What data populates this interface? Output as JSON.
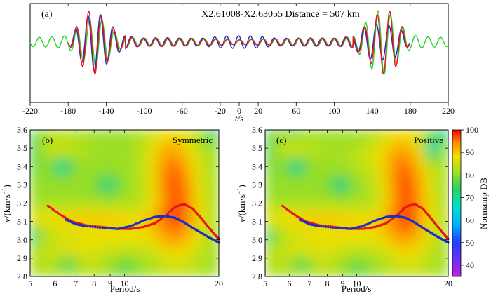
{
  "figure": {
    "colorbar": {
      "label": "Normamp DB",
      "ticks": [
        40,
        50,
        60,
        70,
        80,
        90,
        100
      ],
      "range": [
        35,
        100
      ],
      "stops": [
        {
          "v": 35,
          "color": "#c020e0"
        },
        {
          "v": 42,
          "color": "#7030f0"
        },
        {
          "v": 50,
          "color": "#2040ff"
        },
        {
          "v": 58,
          "color": "#00b0ff"
        },
        {
          "v": 66,
          "color": "#00e0c8"
        },
        {
          "v": 74,
          "color": "#30d060"
        },
        {
          "v": 82,
          "color": "#a8e020"
        },
        {
          "v": 88,
          "color": "#f0e000"
        },
        {
          "v": 94,
          "color": "#ff9000"
        },
        {
          "v": 100,
          "color": "#ff0000"
        }
      ]
    }
  },
  "chart_data": [
    {
      "panel": "(a)",
      "type": "line",
      "title": "X2.61008-X2.63055 Distance = 507 km",
      "xlabel": "t/s",
      "xlim": [
        -220,
        220
      ],
      "xticks": [
        -220,
        -180,
        -140,
        -100,
        -60,
        -20,
        0,
        20,
        60,
        100,
        140,
        180,
        220
      ],
      "yaxis": "amplitude (unlabeled)",
      "series": [
        {
          "name": "trace-red",
          "color": "#e8131b",
          "x": [
            -180,
            -170,
            -160,
            -150,
            -140,
            -130,
            -120,
            -100,
            -80,
            -60,
            -40,
            -20,
            0,
            20,
            40,
            60,
            80,
            100,
            120,
            130,
            140,
            150,
            160,
            170,
            180
          ],
          "envelope": [
            0.04,
            0.55,
            0.95,
            1.0,
            0.65,
            0.35,
            0.18,
            0.12,
            0.14,
            0.12,
            0.1,
            0.09,
            0.07,
            0.09,
            0.1,
            0.12,
            0.13,
            0.12,
            0.18,
            0.4,
            0.7,
            1.0,
            0.95,
            0.55,
            0.04
          ]
        },
        {
          "name": "trace-blue",
          "color": "#1b2fc8",
          "x": [
            -180,
            -170,
            -160,
            -150,
            -140,
            -130,
            -120,
            -100,
            -80,
            -60,
            -40,
            -20,
            0,
            20,
            40,
            60,
            80,
            100,
            120,
            130,
            140,
            150,
            160,
            170,
            180
          ],
          "envelope": [
            0.04,
            0.5,
            0.8,
            0.95,
            0.7,
            0.38,
            0.2,
            0.12,
            0.14,
            0.12,
            0.12,
            0.18,
            0.2,
            0.18,
            0.12,
            0.12,
            0.13,
            0.12,
            0.18,
            0.45,
            0.55,
            0.55,
            0.5,
            0.4,
            0.04
          ]
        },
        {
          "name": "trace-green",
          "color": "#2bd22b",
          "x": [
            -220,
            -200,
            -180,
            -170,
            -160,
            -150,
            -140,
            -130,
            -120,
            -100,
            -60,
            -20,
            0,
            20,
            60,
            100,
            120,
            130,
            140,
            150,
            160,
            170,
            180,
            200,
            220
          ],
          "envelope": [
            0.14,
            0.16,
            0.2,
            0.45,
            0.65,
            0.8,
            0.6,
            0.3,
            0.15,
            0.12,
            0.12,
            0.1,
            0.07,
            0.1,
            0.12,
            0.12,
            0.16,
            0.5,
            0.85,
            1.05,
            0.85,
            0.55,
            0.22,
            0.16,
            0.14
          ]
        }
      ]
    },
    {
      "panel": "(b)",
      "type": "heatmap",
      "label": "Symmetric",
      "xlabel": "Period/s",
      "ylabel": "v/(km·s⁻¹)",
      "xscale": "log",
      "xlim": [
        5,
        20
      ],
      "ylim": [
        2.8,
        3.6
      ],
      "xticks": [
        5,
        6,
        7,
        8,
        9,
        10,
        20
      ],
      "xticklabels": [
        "5",
        "6",
        "7",
        "8",
        "9",
        "10",
        "20"
      ],
      "yticks": [
        2.8,
        2.9,
        3.0,
        3.1,
        3.2,
        3.3,
        3.4,
        3.5,
        3.6
      ],
      "yticklabels": [
        "2.8",
        "2.9",
        "3.0",
        "3.1",
        "3.2",
        "3.3",
        "3.4",
        "3.5",
        "3.6"
      ],
      "series": [
        {
          "name": "dispersion-red",
          "color": "#e8131b",
          "x": [
            5.7,
            6.2,
            6.8,
            7.5,
            8.5,
            9.5,
            10.5,
            11.5,
            12.5,
            13.5,
            14.5,
            15.5,
            16.5,
            17.5,
            18.5,
            19.5,
            20
          ],
          "y": [
            3.185,
            3.14,
            3.1,
            3.08,
            3.07,
            3.06,
            3.06,
            3.07,
            3.09,
            3.13,
            3.18,
            3.195,
            3.17,
            3.12,
            3.07,
            3.025,
            3.005
          ]
        },
        {
          "name": "dispersion-blue",
          "color": "#1b2fc8",
          "x": [
            6.5,
            7.0,
            7.5,
            8.5,
            9.5,
            10.5,
            11.5,
            12.5,
            13.5,
            14.5,
            15.5,
            16.5,
            17.5,
            18.5,
            19.5,
            20
          ],
          "y": [
            3.11,
            3.085,
            3.075,
            3.065,
            3.06,
            3.075,
            3.105,
            3.125,
            3.13,
            3.12,
            3.095,
            3.065,
            3.04,
            3.015,
            2.995,
            2.985
          ]
        }
      ]
    },
    {
      "panel": "(c)",
      "type": "heatmap",
      "label": "Positive",
      "xlabel": "Period/s",
      "ylabel": "v/(km·s⁻¹)",
      "xscale": "log",
      "xlim": [
        5,
        20
      ],
      "ylim": [
        2.8,
        3.6
      ],
      "xticks": [
        5,
        6,
        7,
        8,
        9,
        10,
        20
      ],
      "xticklabels": [
        "5",
        "6",
        "7",
        "8",
        "9",
        "10",
        "20"
      ],
      "yticks": [
        2.8,
        2.9,
        3.0,
        3.1,
        3.2,
        3.3,
        3.4,
        3.5,
        3.6
      ],
      "yticklabels": [
        "2.8",
        "2.9",
        "3.0",
        "3.1",
        "3.2",
        "3.3",
        "3.4",
        "3.5",
        "3.6"
      ],
      "series": [
        {
          "name": "dispersion-red",
          "color": "#e8131b",
          "x": [
            5.7,
            6.2,
            6.8,
            7.5,
            8.5,
            9.5,
            10.5,
            11.5,
            12.5,
            13.5,
            14.5,
            15.5,
            16.5,
            17.5,
            18.5,
            19.5,
            20
          ],
          "y": [
            3.185,
            3.14,
            3.1,
            3.08,
            3.07,
            3.06,
            3.06,
            3.07,
            3.09,
            3.13,
            3.18,
            3.195,
            3.17,
            3.12,
            3.07,
            3.025,
            3.005
          ]
        },
        {
          "name": "dispersion-blue",
          "color": "#1b2fc8",
          "x": [
            6.5,
            7.0,
            7.5,
            8.5,
            9.5,
            10.5,
            11.5,
            12.5,
            13.5,
            14.5,
            15.5,
            16.5,
            17.5,
            18.5,
            19.5,
            20
          ],
          "y": [
            3.11,
            3.085,
            3.075,
            3.065,
            3.06,
            3.075,
            3.105,
            3.125,
            3.13,
            3.12,
            3.095,
            3.065,
            3.04,
            3.015,
            2.995,
            2.985
          ]
        }
      ]
    }
  ]
}
